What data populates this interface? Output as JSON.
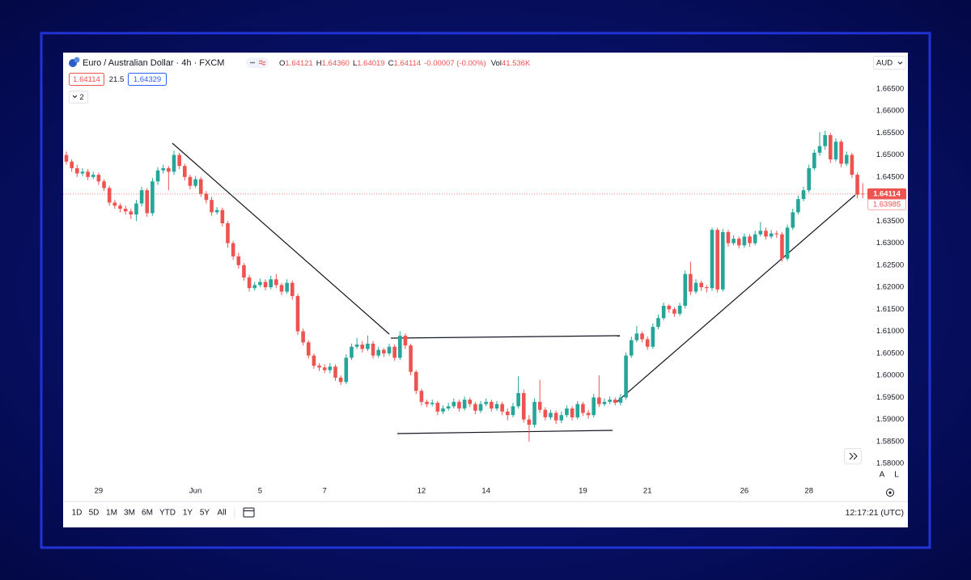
{
  "header": {
    "title": "Euro / Australian Dollar · 4h · FXCM",
    "ohlc": [
      {
        "key": "O",
        "value": "1.64121"
      },
      {
        "key": "H",
        "value": "1.64360"
      },
      {
        "key": "L",
        "value": "1.64019"
      },
      {
        "key": "C",
        "value": "1.64114"
      }
    ],
    "change": "-0.00007 (-0.00%)",
    "volume": {
      "key": "Vol",
      "value": "41.536K"
    },
    "bid": "1.64114",
    "spread": "21.5",
    "ask": "1.64329",
    "indicators": "2"
  },
  "currency": "AUD",
  "toolbar": {
    "ranges": [
      "1D",
      "5D",
      "1M",
      "3M",
      "6M",
      "YTD",
      "1Y",
      "5Y",
      "All"
    ],
    "clock": "12:17:21 (UTC)",
    "scale_buttons": [
      "A",
      "L"
    ]
  },
  "chart_data": {
    "type": "candlestick",
    "up_color": "#26a69a",
    "down_color": "#ef5350",
    "grid": false,
    "ylim": [
      1.5758,
      1.669
    ],
    "yticks": [
      {
        "value": 1.58,
        "label": "1.58000"
      },
      {
        "value": 1.585,
        "label": "1.58500"
      },
      {
        "value": 1.59,
        "label": "1.59000"
      },
      {
        "value": 1.595,
        "label": "1.59500"
      },
      {
        "value": 1.6,
        "label": "1.60000"
      },
      {
        "value": 1.605,
        "label": "1.60500"
      },
      {
        "value": 1.61,
        "label": "1.61000"
      },
      {
        "value": 1.615,
        "label": "1.61500"
      },
      {
        "value": 1.62,
        "label": "1.62000"
      },
      {
        "value": 1.625,
        "label": "1.62500"
      },
      {
        "value": 1.63,
        "label": "1.63000"
      },
      {
        "value": 1.635,
        "label": "1.63500"
      },
      {
        "value": 1.64,
        "label": "1.64000"
      },
      {
        "value": 1.645,
        "label": "1.64500"
      },
      {
        "value": 1.65,
        "label": "1.65000"
      },
      {
        "value": 1.655,
        "label": "1.65500"
      },
      {
        "value": 1.66,
        "label": "1.66000"
      },
      {
        "value": 1.665,
        "label": "1.66500"
      }
    ],
    "last_price": {
      "value": 1.64114,
      "label": "1.64114"
    },
    "prev_close_label": "1.63985",
    "categories": [
      null,
      null,
      null,
      null,
      null,
      null,
      "29",
      null,
      null,
      null,
      null,
      null,
      null,
      null,
      null,
      null,
      null,
      null,
      null,
      null,
      null,
      null,
      null,
      null,
      "Jun",
      null,
      null,
      null,
      null,
      null,
      null,
      null,
      null,
      null,
      null,
      null,
      "5",
      null,
      null,
      null,
      null,
      null,
      null,
      null,
      null,
      null,
      null,
      null,
      "7",
      null,
      null,
      null,
      null,
      null,
      null,
      null,
      null,
      null,
      null,
      null,
      null,
      null,
      null,
      null,
      null,
      null,
      "12",
      null,
      null,
      null,
      null,
      null,
      null,
      null,
      null,
      null,
      null,
      null,
      "14",
      null,
      null,
      null,
      null,
      null,
      null,
      null,
      null,
      null,
      null,
      null,
      null,
      null,
      null,
      null,
      null,
      null,
      "19",
      null,
      null,
      null,
      null,
      null,
      null,
      null,
      null,
      null,
      null,
      null,
      "21",
      null,
      null,
      null,
      null,
      null,
      null,
      null,
      null,
      null,
      null,
      null,
      null,
      null,
      null,
      null,
      null,
      null,
      "26",
      null,
      null,
      null,
      null,
      null,
      null,
      null,
      null,
      null,
      null,
      null,
      "28",
      null,
      null,
      null,
      null,
      null,
      null,
      null,
      null,
      null,
      null
    ],
    "candles": [
      [
        1.65,
        1.6508,
        1.6478,
        1.6485
      ],
      [
        1.6485,
        1.649,
        1.6462,
        1.647
      ],
      [
        1.647,
        1.6478,
        1.645,
        1.6458
      ],
      [
        1.6458,
        1.647,
        1.6452,
        1.6462
      ],
      [
        1.6462,
        1.6468,
        1.6443,
        1.645
      ],
      [
        1.645,
        1.6462,
        1.6445,
        1.6455
      ],
      [
        1.6455,
        1.646,
        1.6432,
        1.644
      ],
      [
        1.644,
        1.6445,
        1.6418,
        1.6425
      ],
      [
        1.6425,
        1.643,
        1.6385,
        1.6392
      ],
      [
        1.6392,
        1.6398,
        1.6378,
        1.6385
      ],
      [
        1.6385,
        1.639,
        1.637,
        1.6378
      ],
      [
        1.6378,
        1.6385,
        1.6365,
        1.6372
      ],
      [
        1.6372,
        1.6378,
        1.6355,
        1.6365
      ],
      [
        1.6365,
        1.6398,
        1.635,
        1.639
      ],
      [
        1.639,
        1.6428,
        1.6383,
        1.642
      ],
      [
        1.642,
        1.6425,
        1.636,
        1.6368
      ],
      [
        1.6368,
        1.6448,
        1.6362,
        1.644
      ],
      [
        1.644,
        1.6472,
        1.6432,
        1.6465
      ],
      [
        1.6465,
        1.6478,
        1.6458,
        1.647
      ],
      [
        1.647,
        1.6475,
        1.642,
        1.6462
      ],
      [
        1.6462,
        1.651,
        1.6455,
        1.65
      ],
      [
        1.65,
        1.6505,
        1.6468,
        1.6475
      ],
      [
        1.6475,
        1.648,
        1.6442,
        1.645
      ],
      [
        1.645,
        1.6455,
        1.6422,
        1.643
      ],
      [
        1.643,
        1.6452,
        1.6425,
        1.6445
      ],
      [
        1.6445,
        1.645,
        1.6405,
        1.6412
      ],
      [
        1.6412,
        1.6418,
        1.639,
        1.6398
      ],
      [
        1.6398,
        1.6405,
        1.6362,
        1.637
      ],
      [
        1.637,
        1.6382,
        1.6365,
        1.6375
      ],
      [
        1.6375,
        1.638,
        1.6338,
        1.6345
      ],
      [
        1.6345,
        1.635,
        1.629,
        1.63
      ],
      [
        1.63,
        1.6305,
        1.6262,
        1.627
      ],
      [
        1.627,
        1.6278,
        1.6242,
        1.625
      ],
      [
        1.625,
        1.6255,
        1.6215,
        1.6222
      ],
      [
        1.6222,
        1.6228,
        1.619,
        1.6198
      ],
      [
        1.6198,
        1.6212,
        1.6192,
        1.6205
      ],
      [
        1.6205,
        1.622,
        1.62,
        1.6212
      ],
      [
        1.6212,
        1.6218,
        1.6193,
        1.62
      ],
      [
        1.62,
        1.6226,
        1.6195,
        1.6218
      ],
      [
        1.6218,
        1.623,
        1.6198,
        1.6205
      ],
      [
        1.6205,
        1.621,
        1.6182,
        1.619
      ],
      [
        1.619,
        1.6218,
        1.6185,
        1.621
      ],
      [
        1.621,
        1.6215,
        1.6172,
        1.618
      ],
      [
        1.618,
        1.6185,
        1.6092,
        1.61
      ],
      [
        1.61,
        1.6106,
        1.6068,
        1.6075
      ],
      [
        1.6075,
        1.608,
        1.6038,
        1.6045
      ],
      [
        1.6045,
        1.605,
        1.6015,
        1.6022
      ],
      [
        1.6022,
        1.6028,
        1.601,
        1.6018
      ],
      [
        1.6018,
        1.6025,
        1.6005,
        1.6012
      ],
      [
        1.6012,
        1.6028,
        1.6005,
        1.602
      ],
      [
        1.602,
        1.6025,
        1.5988,
        1.5995
      ],
      [
        1.5995,
        1.6,
        1.5978,
        1.5985
      ],
      [
        1.5985,
        1.6048,
        1.598,
        1.604
      ],
      [
        1.604,
        1.6072,
        1.6035,
        1.6065
      ],
      [
        1.6065,
        1.6085,
        1.606,
        1.607
      ],
      [
        1.607,
        1.6078,
        1.6052,
        1.606
      ],
      [
        1.606,
        1.609,
        1.6055,
        1.6072
      ],
      [
        1.6072,
        1.6078,
        1.6038,
        1.6045
      ],
      [
        1.6045,
        1.6065,
        1.604,
        1.6058
      ],
      [
        1.6058,
        1.6062,
        1.6042,
        1.605
      ],
      [
        1.605,
        1.6072,
        1.6045,
        1.6065
      ],
      [
        1.6065,
        1.607,
        1.6033,
        1.604
      ],
      [
        1.604,
        1.61,
        1.6035,
        1.609
      ],
      [
        1.609,
        1.6095,
        1.606,
        1.6068
      ],
      [
        1.6068,
        1.6072,
        1.6,
        1.6008
      ],
      [
        1.6008,
        1.6012,
        1.5958,
        1.5965
      ],
      [
        1.5965,
        1.597,
        1.5932,
        1.594
      ],
      [
        1.594,
        1.5945,
        1.5928,
        1.5935
      ],
      [
        1.5935,
        1.5945,
        1.593,
        1.5938
      ],
      [
        1.5938,
        1.5942,
        1.591,
        1.5918
      ],
      [
        1.5918,
        1.5932,
        1.5912,
        1.5925
      ],
      [
        1.5925,
        1.5938,
        1.592,
        1.593
      ],
      [
        1.593,
        1.5948,
        1.5925,
        1.594
      ],
      [
        1.594,
        1.5945,
        1.5918,
        1.5925
      ],
      [
        1.5925,
        1.5952,
        1.592,
        1.5945
      ],
      [
        1.5945,
        1.595,
        1.5928,
        1.5935
      ],
      [
        1.5935,
        1.594,
        1.5912,
        1.592
      ],
      [
        1.592,
        1.5942,
        1.5915,
        1.5935
      ],
      [
        1.5935,
        1.5948,
        1.593,
        1.594
      ],
      [
        1.594,
        1.5945,
        1.5918,
        1.5925
      ],
      [
        1.5925,
        1.5942,
        1.592,
        1.5935
      ],
      [
        1.5935,
        1.594,
        1.591,
        1.5918
      ],
      [
        1.5918,
        1.5925,
        1.5898,
        1.591
      ],
      [
        1.591,
        1.5938,
        1.5905,
        1.593
      ],
      [
        1.593,
        1.5998,
        1.5925,
        1.596
      ],
      [
        1.596,
        1.5968,
        1.5893,
        1.59
      ],
      [
        1.59,
        1.591,
        1.585,
        1.5888
      ],
      [
        1.5888,
        1.5948,
        1.5882,
        1.594
      ],
      [
        1.594,
        1.599,
        1.5915,
        1.5922
      ],
      [
        1.5922,
        1.5928,
        1.5898,
        1.5905
      ],
      [
        1.5905,
        1.5922,
        1.59,
        1.5915
      ],
      [
        1.5915,
        1.592,
        1.589,
        1.5898
      ],
      [
        1.5898,
        1.5918,
        1.5892,
        1.591
      ],
      [
        1.591,
        1.5932,
        1.5905,
        1.5925
      ],
      [
        1.5925,
        1.593,
        1.5898,
        1.5905
      ],
      [
        1.5905,
        1.5942,
        1.59,
        1.5935
      ],
      [
        1.5935,
        1.594,
        1.5908,
        1.5915
      ],
      [
        1.5915,
        1.5922,
        1.5902,
        1.591
      ],
      [
        1.591,
        1.5958,
        1.5905,
        1.595
      ],
      [
        1.595,
        1.6,
        1.5928,
        1.5935
      ],
      [
        1.5935,
        1.5948,
        1.593,
        1.594
      ],
      [
        1.594,
        1.5952,
        1.5935,
        1.5945
      ],
      [
        1.5945,
        1.595,
        1.5932,
        1.5938
      ],
      [
        1.5938,
        1.5958,
        1.5932,
        1.595
      ],
      [
        1.595,
        1.6052,
        1.5945,
        1.6045
      ],
      [
        1.6045,
        1.6088,
        1.604,
        1.608
      ],
      [
        1.608,
        1.6112,
        1.6075,
        1.6095
      ],
      [
        1.6095,
        1.61,
        1.6075,
        1.6082
      ],
      [
        1.6082,
        1.6088,
        1.6058,
        1.6065
      ],
      [
        1.6065,
        1.6118,
        1.606,
        1.611
      ],
      [
        1.611,
        1.6138,
        1.6105,
        1.613
      ],
      [
        1.613,
        1.6165,
        1.6125,
        1.6158
      ],
      [
        1.6158,
        1.6162,
        1.6142,
        1.615
      ],
      [
        1.615,
        1.6155,
        1.6133,
        1.614
      ],
      [
        1.614,
        1.6165,
        1.6135,
        1.6158
      ],
      [
        1.6158,
        1.6238,
        1.6152,
        1.623
      ],
      [
        1.623,
        1.6258,
        1.6182,
        1.619
      ],
      [
        1.619,
        1.6218,
        1.6185,
        1.621
      ],
      [
        1.621,
        1.6215,
        1.6192,
        1.62
      ],
      [
        1.62,
        1.6205,
        1.6188,
        1.6198
      ],
      [
        1.6198,
        1.6335,
        1.6192,
        1.633
      ],
      [
        1.633,
        1.6335,
        1.6188,
        1.6195
      ],
      [
        1.6195,
        1.6332,
        1.619,
        1.6325
      ],
      [
        1.6325,
        1.633,
        1.6292,
        1.63
      ],
      [
        1.63,
        1.6318,
        1.6295,
        1.631
      ],
      [
        1.631,
        1.6315,
        1.6288,
        1.6295
      ],
      [
        1.6295,
        1.6322,
        1.629,
        1.6315
      ],
      [
        1.6315,
        1.632,
        1.6292,
        1.63
      ],
      [
        1.63,
        1.6328,
        1.6295,
        1.632
      ],
      [
        1.632,
        1.6348,
        1.6315,
        1.6328
      ],
      [
        1.6328,
        1.6335,
        1.6308,
        1.6315
      ],
      [
        1.6315,
        1.633,
        1.631,
        1.6322
      ],
      [
        1.6322,
        1.6328,
        1.6312,
        1.632
      ],
      [
        1.632,
        1.6325,
        1.6258,
        1.6265
      ],
      [
        1.6265,
        1.6342,
        1.626,
        1.6335
      ],
      [
        1.6335,
        1.6378,
        1.633,
        1.637
      ],
      [
        1.637,
        1.6408,
        1.6365,
        1.64
      ],
      [
        1.64,
        1.6428,
        1.6395,
        1.642
      ],
      [
        1.642,
        1.6478,
        1.6415,
        1.647
      ],
      [
        1.647,
        1.6512,
        1.6465,
        1.6505
      ],
      [
        1.6505,
        1.6552,
        1.6498,
        1.652
      ],
      [
        1.652,
        1.6555,
        1.6512,
        1.6545
      ],
      [
        1.6545,
        1.655,
        1.6482,
        1.649
      ],
      [
        1.649,
        1.6538,
        1.6485,
        1.653
      ],
      [
        1.653,
        1.6535,
        1.6472,
        1.648
      ],
      [
        1.648,
        1.6508,
        1.6475,
        1.65
      ],
      [
        1.65,
        1.6505,
        1.6448,
        1.6455
      ],
      [
        1.6455,
        1.646,
        1.6402,
        1.641
      ],
      [
        1.64121,
        1.6436,
        1.64019,
        1.64114
      ]
    ]
  }
}
